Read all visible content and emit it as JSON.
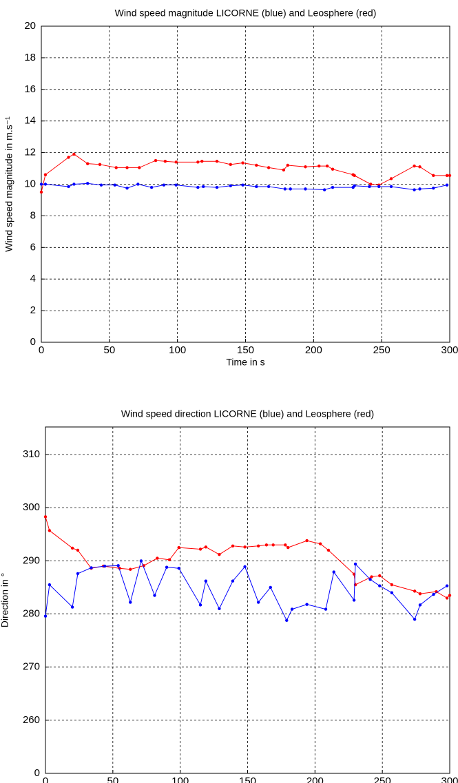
{
  "chart_data": [
    {
      "type": "line",
      "title": "Wind speed magnitude LICORNE (blue) and Leosphere (red)",
      "x_label": "Time in s",
      "y_label": "Wind speed magnitude in m.s⁻¹",
      "xlim": [
        0,
        300
      ],
      "xticks": [
        0,
        50,
        100,
        150,
        200,
        250,
        300
      ],
      "ylim": [
        0,
        20
      ],
      "yticks": [
        0,
        2,
        4,
        6,
        8,
        10,
        12,
        14,
        16,
        18,
        20
      ],
      "grid": true,
      "series": [
        {
          "color": "#ff0000",
          "x": [
            0,
            3,
            20,
            24,
            34,
            43,
            55,
            63,
            72,
            84,
            91,
            99,
            115,
            118,
            129,
            139,
            148,
            158,
            167,
            178,
            181,
            194,
            204,
            210,
            214,
            229,
            230,
            242,
            248,
            257,
            274,
            278,
            288,
            298,
            300
          ],
          "values": [
            9.5,
            10.6,
            11.7,
            11.9,
            11.3,
            11.25,
            11.05,
            11.05,
            11.05,
            11.5,
            11.45,
            11.4,
            11.4,
            11.45,
            11.45,
            11.25,
            11.35,
            11.2,
            11.05,
            10.9,
            11.2,
            11.1,
            11.15,
            11.15,
            10.95,
            10.6,
            10.55,
            10.0,
            9.95,
            10.35,
            11.15,
            11.1,
            10.55,
            10.55,
            10.55
          ]
        },
        {
          "color": "#0000ff",
          "x": [
            0,
            3,
            20,
            24,
            34,
            44,
            54,
            63,
            71,
            81,
            90,
            99,
            115,
            119,
            129,
            139,
            148,
            158,
            167,
            179,
            183,
            194,
            208,
            214,
            229,
            230,
            241,
            248,
            257,
            274,
            278,
            288,
            298
          ],
          "values": [
            10.0,
            10.0,
            9.85,
            10.0,
            10.05,
            9.95,
            9.95,
            9.75,
            10.0,
            9.8,
            9.95,
            9.95,
            9.8,
            9.85,
            9.8,
            9.9,
            9.95,
            9.85,
            9.85,
            9.7,
            9.7,
            9.7,
            9.65,
            9.8,
            9.8,
            9.9,
            9.85,
            9.85,
            9.85,
            9.65,
            9.7,
            9.75,
            9.95
          ]
        }
      ]
    },
    {
      "type": "line",
      "title": "Wind speed direction LICORNE (blue) and Leosphere (red)",
      "x_label": "Time in s",
      "y_label": "Direction in °",
      "xlim": [
        0,
        300
      ],
      "xticks": [
        0,
        50,
        100,
        150,
        200,
        250,
        300
      ],
      "ylim": [
        250,
        315.2
      ],
      "yticks": [
        {
          "value": 250,
          "label": "0"
        },
        260,
        270,
        280,
        290,
        300,
        310
      ],
      "grid": true,
      "series": [
        {
          "color": "#ff0000",
          "x": [
            0,
            3,
            20,
            24,
            34,
            43,
            55,
            63,
            73,
            83,
            92,
            99,
            115,
            119,
            129,
            139,
            148,
            158,
            164,
            169,
            178,
            180,
            194,
            204,
            210,
            229,
            230,
            242,
            248,
            257,
            274,
            278,
            290,
            298,
            300
          ],
          "values": [
            298.3,
            295.7,
            292.4,
            292.0,
            288.6,
            289.0,
            288.6,
            288.4,
            289.1,
            290.5,
            290.2,
            292.5,
            292.2,
            292.6,
            291.2,
            292.8,
            292.6,
            292.8,
            293.0,
            293.0,
            293.0,
            292.5,
            293.8,
            293.2,
            292.0,
            287.5,
            285.5,
            287.0,
            287.2,
            285.5,
            284.3,
            283.8,
            284.2,
            283.0,
            283.5
          ]
        },
        {
          "color": "#0000ff",
          "x": [
            0,
            3,
            20,
            24,
            34,
            44,
            54,
            63,
            71,
            81,
            90,
            99,
            115,
            119,
            129,
            139,
            148,
            158,
            167,
            179,
            183,
            194,
            208,
            214,
            229,
            230,
            241,
            248,
            257,
            274,
            278,
            288,
            298
          ],
          "values": [
            279.6,
            285.5,
            281.3,
            287.6,
            288.7,
            289.0,
            289.1,
            282.2,
            290.0,
            283.5,
            288.8,
            288.6,
            281.7,
            286.2,
            281.0,
            286.2,
            288.9,
            282.2,
            285.0,
            278.8,
            280.9,
            281.8,
            280.9,
            287.9,
            282.6,
            289.4,
            286.5,
            285.3,
            284.0,
            279.0,
            281.7,
            283.7,
            285.3
          ]
        }
      ]
    }
  ]
}
